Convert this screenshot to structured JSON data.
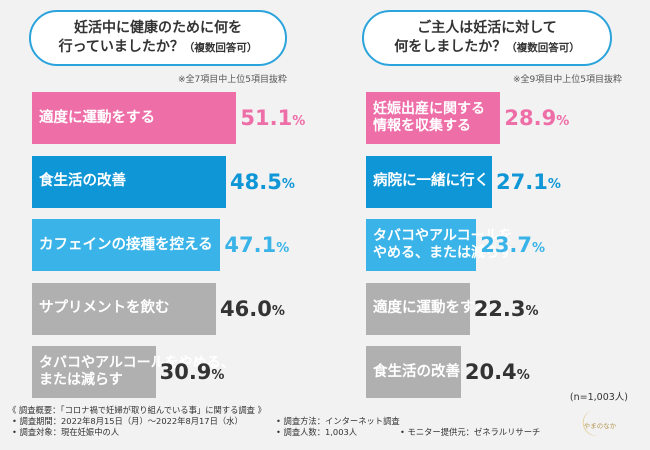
{
  "colors": {
    "pink": "#ee6ea8",
    "blue": "#0f96d6",
    "lightblue": "#3ab4e8",
    "gray": "#b0b0b0",
    "bubble_border": "#2ba3dc"
  },
  "panels": [
    {
      "question_line1": "妊活中に健康のために何を",
      "question_line2": "行っていましたか？",
      "question_note": "（複数回答可）",
      "sample_note": "※全7項目中上位5項目抜粋"
    },
    {
      "question_line1": "ご主人は妊活に対して",
      "question_line2": "何をしましたか？",
      "question_note": "（複数回答可）",
      "sample_note": "※全9項目中上位5項目抜粋"
    }
  ],
  "chart_data": [
    {
      "type": "bar",
      "orientation": "horizontal",
      "title": "妊活中に健康のために何を行っていましたか？（複数回答可）",
      "categories": [
        [
          "適度に運動をする"
        ],
        [
          "食生活の改善"
        ],
        [
          "カフェインの接種を控える"
        ],
        [
          "サプリメントを飲む"
        ],
        [
          "タバコやアルコールをやめる、",
          "または減らす"
        ]
      ],
      "values": [
        51.1,
        48.5,
        47.1,
        46.0,
        30.9
      ],
      "value_labels": [
        "51.1",
        "48.5",
        "47.1",
        "46.0",
        "30.9"
      ],
      "unit": "%",
      "bar_colors": [
        "pink",
        "blue",
        "lightblue",
        "gray",
        "gray"
      ],
      "xlim": [
        0,
        100
      ]
    },
    {
      "type": "bar",
      "orientation": "horizontal",
      "title": "ご主人は妊活に対して何をしましたか？（複数回答可）",
      "categories": [
        [
          "妊娠出産に関する",
          "情報を収集する"
        ],
        [
          "病院に一緒に行く"
        ],
        [
          "タバコやアルコールを",
          "やめる、または減らす"
        ],
        [
          "適度に運動をする"
        ],
        [
          "食生活の改善"
        ]
      ],
      "values": [
        28.9,
        27.1,
        23.7,
        22.3,
        20.4
      ],
      "value_labels": [
        "28.9",
        "27.1",
        "23.7",
        "22.3",
        "20.4"
      ],
      "unit": "%",
      "bar_colors": [
        "pink",
        "blue",
        "lightblue",
        "gray",
        "gray"
      ],
      "xlim": [
        0,
        50
      ]
    }
  ],
  "total_n": "(n=1,003人)",
  "survey": {
    "title": "《 調査概要：「コロナ禍で妊婦が取り組んでいる事」に関する調査 》",
    "period": "• 調査期間：2022年8月15日（月）～2022年8月17日（水）",
    "method": "• 調査方法：インターネット調査",
    "target": "• 調査対象：現在妊娠中の人",
    "count": "• 調査人数：1,003人",
    "provider": "• モニター提供元：ゼネラルリサーチ"
  },
  "logo_text": "やまのなか"
}
